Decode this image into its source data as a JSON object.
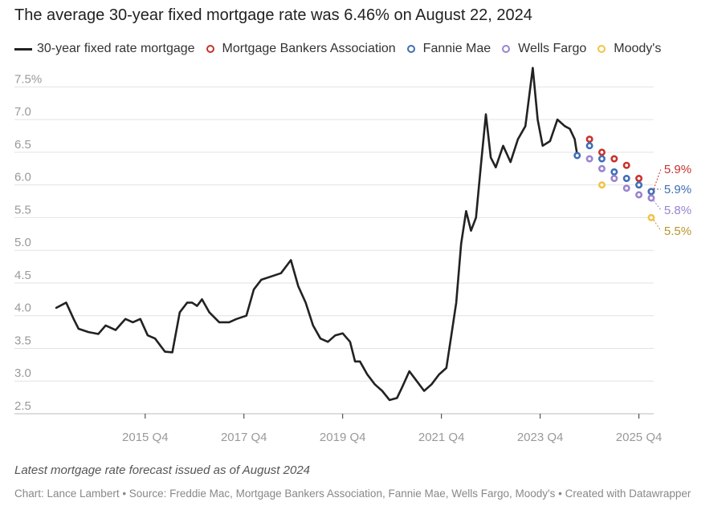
{
  "title": "The average 30-year fixed mortgage rate was 6.46% on August 22, 2024",
  "legend": [
    {
      "label": "30-year fixed rate mortgage",
      "kind": "line",
      "color": "#222222"
    },
    {
      "label": "Mortgage Bankers Association",
      "kind": "ring",
      "color": "#c8322d"
    },
    {
      "label": "Fannie Mae",
      "kind": "ring",
      "color": "#3f6eb5"
    },
    {
      "label": "Wells Fargo",
      "kind": "ring",
      "color": "#9a83cf"
    },
    {
      "label": "Moody's",
      "kind": "ring",
      "color": "#f2c346"
    }
  ],
  "note": "Latest mortgage rate forecast issued as of August 2024",
  "credit": "Chart: Lance Lambert • Source: Freddie Mac, Mortgage Bankers Association, Fannie Mae, Wells Fargo, Moody's • Created with Datawrapper",
  "chart_data": {
    "type": "line",
    "ylim": [
      2.5,
      7.75
    ],
    "xlim": [
      2014.0,
      2026.2
    ],
    "y_ticks": [
      2.5,
      3.0,
      3.5,
      4.0,
      4.5,
      5.0,
      5.5,
      6.0,
      6.5,
      7.0,
      7.5
    ],
    "y_tick_labels": [
      "2.5",
      "3.0",
      "3.5",
      "4.0",
      "4.5",
      "5.0",
      "5.5",
      "6.0",
      "6.5",
      "7.0",
      "7.5%"
    ],
    "x_ticks": [
      2015.9,
      2017.9,
      2019.9,
      2021.9,
      2023.9,
      2025.9
    ],
    "x_tick_labels": [
      "2015 Q4",
      "2017 Q4",
      "2019 Q4",
      "2021 Q4",
      "2023 Q4",
      "2025 Q4"
    ],
    "grid": true,
    "series": [
      {
        "name": "30-year fixed rate mortgage",
        "color": "#222222",
        "x": [
          2014.1,
          2014.3,
          2014.45,
          2014.55,
          2014.75,
          2014.95,
          2015.1,
          2015.3,
          2015.5,
          2015.65,
          2015.8,
          2015.95,
          2016.1,
          2016.3,
          2016.45,
          2016.6,
          2016.75,
          2016.85,
          2016.95,
          2017.05,
          2017.2,
          2017.4,
          2017.6,
          2017.75,
          2017.95,
          2018.1,
          2018.25,
          2018.45,
          2018.65,
          2018.85,
          2019.0,
          2019.15,
          2019.3,
          2019.45,
          2019.6,
          2019.75,
          2019.9,
          2020.05,
          2020.15,
          2020.25,
          2020.4,
          2020.55,
          2020.7,
          2020.85,
          2021.0,
          2021.1,
          2021.25,
          2021.4,
          2021.55,
          2021.7,
          2021.85,
          2022.0,
          2022.1,
          2022.2,
          2022.3,
          2022.4,
          2022.5,
          2022.6,
          2022.7,
          2022.8,
          2022.9,
          2023.0,
          2023.15,
          2023.3,
          2023.45,
          2023.6,
          2023.75,
          2023.85,
          2023.95,
          2024.1,
          2024.25,
          2024.4,
          2024.5,
          2024.6,
          2024.65
        ],
        "y": [
          4.12,
          4.2,
          3.95,
          3.8,
          3.75,
          3.72,
          3.85,
          3.78,
          3.95,
          3.9,
          3.95,
          3.7,
          3.65,
          3.45,
          3.44,
          4.05,
          4.2,
          4.2,
          4.15,
          4.25,
          4.05,
          3.9,
          3.9,
          3.95,
          4.0,
          4.4,
          4.55,
          4.6,
          4.65,
          4.85,
          4.45,
          4.2,
          3.85,
          3.65,
          3.6,
          3.7,
          3.73,
          3.6,
          3.3,
          3.3,
          3.1,
          2.95,
          2.85,
          2.71,
          2.74,
          2.9,
          3.15,
          3.0,
          2.85,
          2.95,
          3.1,
          3.2,
          3.7,
          4.2,
          5.1,
          5.6,
          5.3,
          5.5,
          6.3,
          7.08,
          6.42,
          6.27,
          6.6,
          6.35,
          6.7,
          6.9,
          7.79,
          7.0,
          6.6,
          6.67,
          7.0,
          6.9,
          6.86,
          6.7,
          6.46
        ]
      },
      {
        "name": "Mortgage Bankers Association",
        "color": "#c8322d",
        "x": [
          2024.9,
          2025.15,
          2025.4,
          2025.65,
          2025.9,
          2026.15
        ],
        "y": [
          6.7,
          6.5,
          6.4,
          6.3,
          6.1,
          5.9
        ]
      },
      {
        "name": "Fannie Mae",
        "color": "#3f6eb5",
        "x": [
          2024.65,
          2024.9,
          2025.15,
          2025.4,
          2025.65,
          2025.9,
          2026.15
        ],
        "y": [
          6.45,
          6.6,
          6.4,
          6.2,
          6.1,
          6.0,
          5.9
        ]
      },
      {
        "name": "Wells Fargo",
        "color": "#9a83cf",
        "x": [
          2024.9,
          2025.15,
          2025.4,
          2025.65,
          2025.9,
          2026.15
        ],
        "y": [
          6.4,
          6.25,
          6.1,
          5.95,
          5.85,
          5.8
        ]
      },
      {
        "name": "Moody's",
        "color": "#f2c346",
        "x": [
          2025.15,
          2026.15
        ],
        "y": [
          6.0,
          5.5
        ]
      }
    ],
    "end_labels": [
      {
        "text": "5.9%",
        "series": 1,
        "color": "#c8322d"
      },
      {
        "text": "5.9%",
        "series": 2,
        "color": "#3f6eb5"
      },
      {
        "text": "5.8%",
        "series": 3,
        "color": "#9a83cf"
      },
      {
        "text": "5.5%",
        "series": 4,
        "color": "#b8962a"
      }
    ]
  }
}
